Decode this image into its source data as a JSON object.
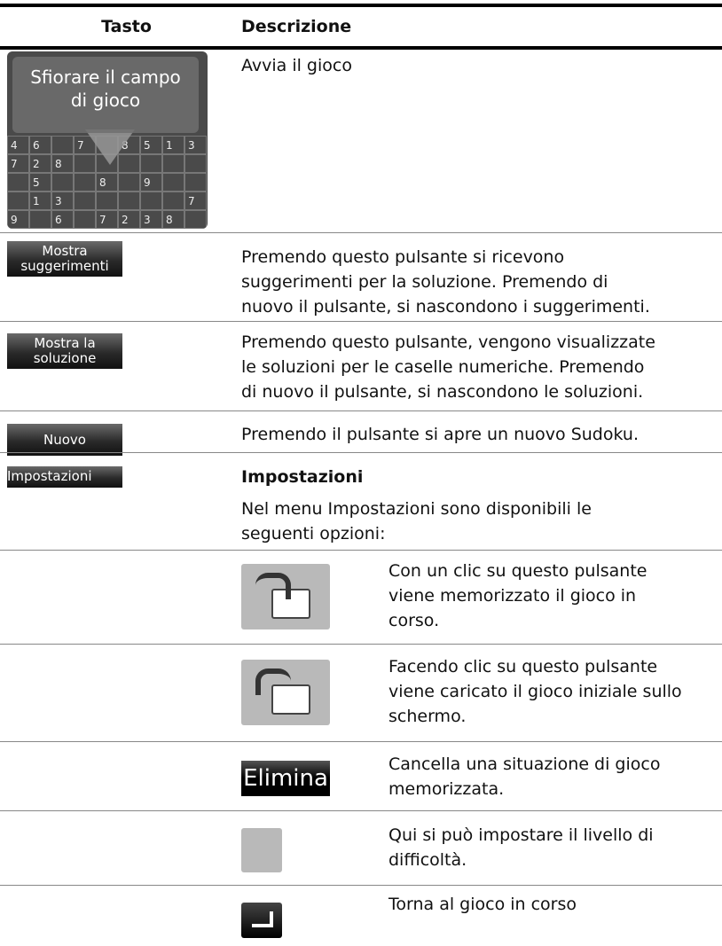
{
  "table": {
    "headers": [
      "Tasto",
      "Descrizione"
    ],
    "rows": [
      {
        "key": {
          "overlay": [
            "Sfiorare il campo",
            "di gioco"
          ],
          "grid": [
            [
              4,
              6,
              null,
              7,
              null,
              8,
              5,
              1,
              3
            ],
            [
              7,
              2,
              8,
              null,
              null,
              null,
              null,
              null,
              null
            ],
            [
              null,
              5,
              null,
              null,
              8,
              null,
              9,
              null,
              null
            ],
            [
              null,
              1,
              3,
              null,
              null,
              null,
              null,
              null,
              7
            ],
            [
              9,
              null,
              6,
              null,
              7,
              2,
              3,
              8,
              null
            ]
          ]
        },
        "description": [
          "Avvia il gioco"
        ]
      },
      {
        "key": [
          "Mostra",
          "suggerimenti"
        ],
        "description": [
          "Premendo questo pulsante si ricevono",
          "suggerimenti per la soluzione. Premendo di",
          "nuovo il pulsante, si nascondono i suggerimenti."
        ]
      },
      {
        "key": [
          "Mostra la",
          "soluzione"
        ],
        "description": [
          "Premendo questo pulsante, vengono visualizzate",
          "le soluzioni per le caselle numeriche. Premendo",
          "di nuovo il pulsante, si nascondono le soluzioni."
        ]
      },
      {
        "key": [
          "Nuovo"
        ],
        "description": [
          "Premendo il pulsante si apre un nuovo Sudoku."
        ]
      },
      {
        "key": [
          "Impostazioni"
        ],
        "title": "Impostazioni",
        "description": [
          "Nel menu Impostazioni sono disponibili le",
          "seguenti opzioni:"
        ],
        "options": [
          {
            "description": [
              "Con un clic su questo pulsante",
              "viene memorizzato il gioco in",
              "corso."
            ]
          },
          {
            "description": [
              "Facendo clic su questo pulsante",
              "viene caricato il gioco iniziale sullo",
              "schermo."
            ]
          },
          {
            "label": "Elimina",
            "description": [
              "Cancella una situazione di gioco",
              "memorizzata."
            ]
          },
          {
            "description": [
              "Qui si può impostare il livello di",
              "difficoltà."
            ]
          },
          {
            "description": [
              "Torna al gioco in corso"
            ]
          }
        ]
      }
    ]
  }
}
